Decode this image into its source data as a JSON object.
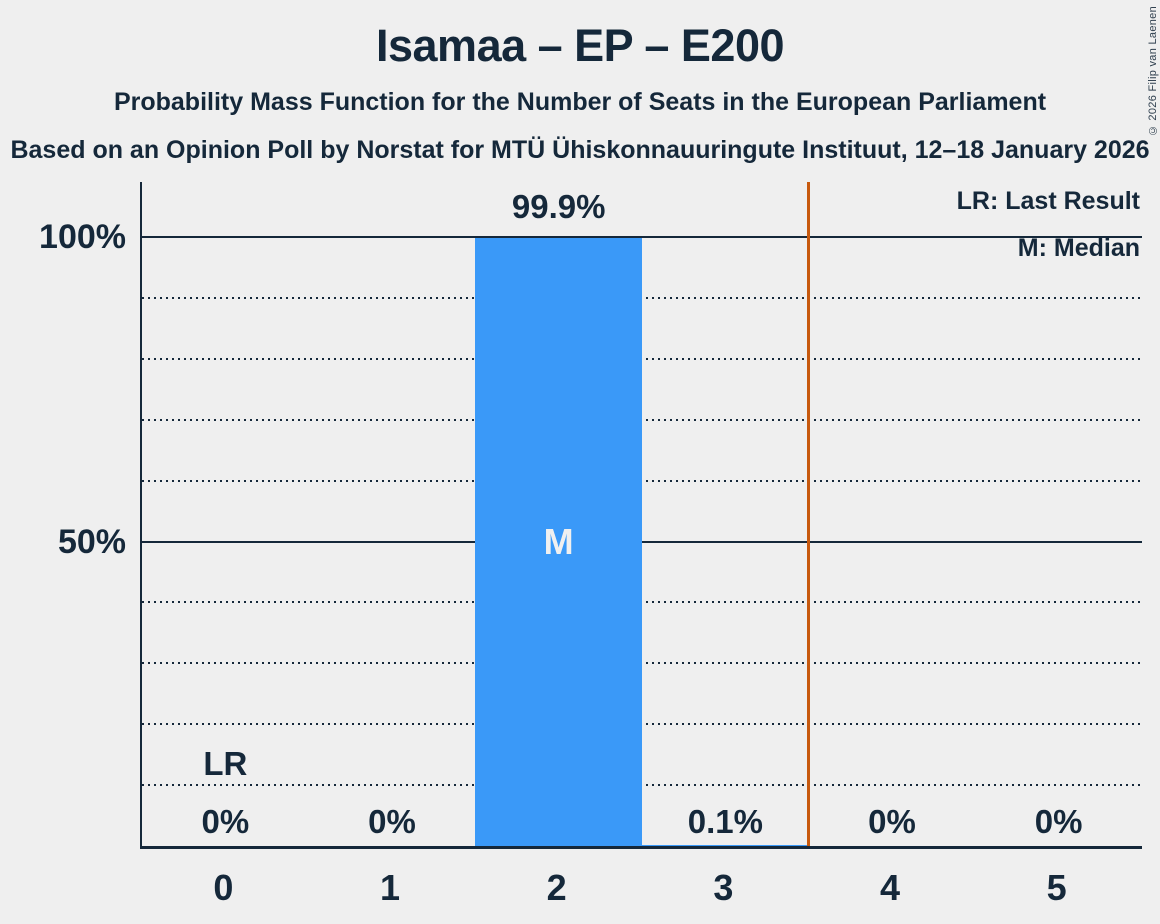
{
  "page": {
    "title": "Isamaa – EP – E200",
    "subtitle": "Probability Mass Function for the Number of Seats in the European Parliament",
    "source_line": "Based on an Opinion Poll by Norstat for MTÜ Ühiskonnauuringute Instituut, 12–18 January 2026",
    "copyright": "© 2026 Filip van Laenen"
  },
  "legend": {
    "items": [
      {
        "label": "LR: Last Result"
      },
      {
        "label": "M: Median"
      }
    ]
  },
  "chart_data": {
    "type": "bar",
    "title": "Isamaa – EP – E200",
    "xlabel": "Number of seats in the European Parliament",
    "categories": [
      "0",
      "1",
      "2",
      "3",
      "4",
      "5"
    ],
    "values": [
      0,
      0,
      99.9,
      0.1,
      0,
      0
    ],
    "value_labels": [
      "0%",
      "0%",
      "99.9%",
      "0.1%",
      "0%",
      "0%"
    ],
    "ylim": [
      0,
      100
    ],
    "y_tick_labels": [
      {
        "text": "100%",
        "value": 100
      },
      {
        "text": "50%",
        "value": 50
      }
    ],
    "y_gridline_step_pct": 10,
    "solid_gridlines_pct": [
      50,
      100
    ],
    "grid": "dotted horizontal",
    "legend_position": "top-right",
    "median": {
      "column_index": 2,
      "marker": "M"
    },
    "last_result": {
      "column_index": 0,
      "marker": "LR"
    },
    "vertical_line_at_x": 3.5,
    "colors": {
      "background": "#EFEFEF",
      "text": "#15283A",
      "bar": "#3A99F8",
      "vertical_line": "#C7590E",
      "median_marker": "#F0F0F0"
    }
  }
}
